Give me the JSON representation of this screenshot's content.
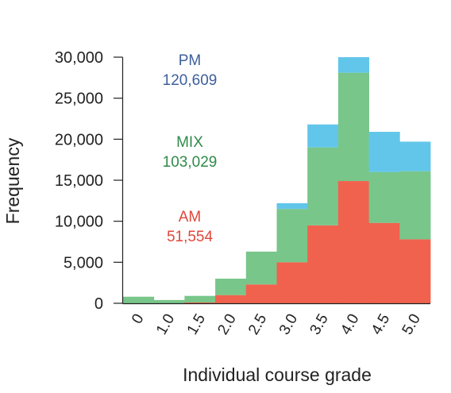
{
  "chart_data": {
    "type": "bar",
    "stacked": true,
    "xlabel": "Individual course grade",
    "ylabel": "Frequency",
    "ylim": [
      0,
      30000
    ],
    "yticks": [
      0,
      5000,
      10000,
      15000,
      20000,
      25000,
      30000
    ],
    "ytick_labels": [
      "0",
      "5,000",
      "10,000",
      "15,000",
      "20,000",
      "25,000",
      "30,000"
    ],
    "xtick_labels": [
      "0",
      "1.0",
      "1.5",
      "2.0",
      "2.5",
      "3.0",
      "3.5",
      "4.0",
      "4.5",
      "5.0"
    ],
    "series": [
      {
        "key": "AM",
        "color": "#f0624d",
        "values": [
          0,
          0,
          100,
          1000,
          2300,
          5000,
          9500,
          14900,
          9800,
          7800
        ]
      },
      {
        "key": "MIX",
        "color": "#78c68a",
        "values": [
          800,
          400,
          800,
          2000,
          4000,
          6500,
          9500,
          13200,
          6200,
          8300
        ]
      },
      {
        "key": "PM",
        "color": "#62c6ea",
        "values": [
          0,
          0,
          0,
          0,
          0,
          700,
          2800,
          1900,
          4900,
          3600
        ]
      }
    ],
    "annotations": [
      {
        "series": "PM",
        "label": "PM",
        "total": "120,609",
        "color": "#3d5f9a"
      },
      {
        "series": "MIX",
        "label": "MIX",
        "total": "103,029",
        "color": "#2f8a4a"
      },
      {
        "series": "AM",
        "label": "AM",
        "total": "51,554",
        "color": "#e0473a"
      }
    ]
  }
}
